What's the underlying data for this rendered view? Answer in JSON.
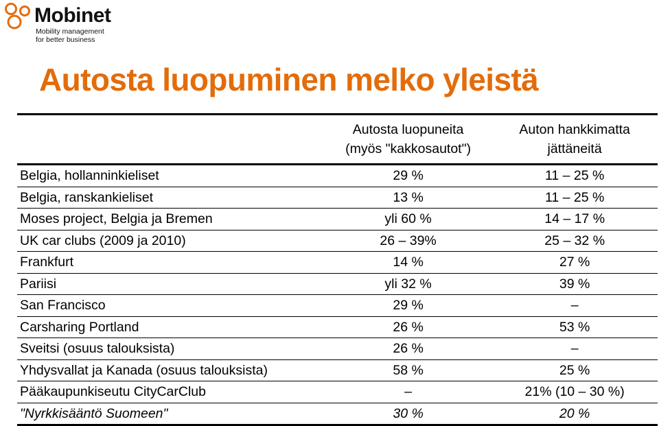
{
  "logo": {
    "name": "Mobinet",
    "tagline_1": "Mobility management",
    "tagline_2": "for better business",
    "icon": "three-circles-logo-icon"
  },
  "title": "Autosta luopuminen melko yleistä",
  "colors": {
    "title": "#E36C0A",
    "logo_mark": "#E36C0A",
    "text": "#000000"
  },
  "table": {
    "headers": {
      "col0": "",
      "col1_line1": "Autosta luopuneita",
      "col1_line2": "(myös \"kakkosautot\")",
      "col2_line1": "Auton hankkimatta",
      "col2_line2": "jättäneitä"
    },
    "rows": [
      {
        "label": "Belgia, hollanninkieliset",
        "a": "29 %",
        "b": "11 – 25 %"
      },
      {
        "label": "Belgia, ranskankieliset",
        "a": "13 %",
        "b": "11 – 25 %"
      },
      {
        "label": "Moses project, Belgia ja Bremen",
        "a": "yli 60 %",
        "b": "14 – 17 %"
      },
      {
        "label": "UK car clubs (2009 ja 2010)",
        "a": "26 – 39%",
        "b": "25 – 32 %"
      },
      {
        "label": "Frankfurt",
        "a": "14 %",
        "b": "27 %"
      },
      {
        "label": "Pariisi",
        "a": "yli 32 %",
        "b": "39 %"
      },
      {
        "label": "San Francisco",
        "a": "29 %",
        "b": "–"
      },
      {
        "label": "Carsharing Portland",
        "a": "26 %",
        "b": "53 %"
      },
      {
        "label": "Sveitsi (osuus talouksista)",
        "a": "26 %",
        "b": "–"
      },
      {
        "label": "Yhdysvallat ja Kanada (osuus talouksista)",
        "a": "58 %",
        "b": "25 %"
      },
      {
        "label": "Pääkaupunkiseutu CityCarClub",
        "a": "–",
        "b": "21% (10 – 30 %)"
      },
      {
        "label": "\"Nyrkkisääntö Suomeen\"",
        "a": "30 %",
        "b": "20 %"
      }
    ]
  }
}
